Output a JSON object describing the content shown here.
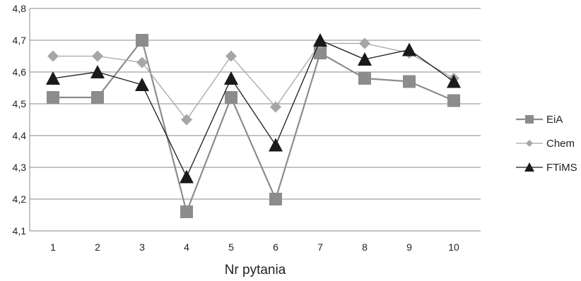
{
  "chart_data": {
    "type": "line",
    "x": [
      1,
      2,
      3,
      4,
      5,
      6,
      7,
      8,
      9,
      10
    ],
    "xlabel": "Nr pytania",
    "ylabel": "",
    "ylim": [
      4.1,
      4.8
    ],
    "yticks": [
      "4,1",
      "4,2",
      "4,3",
      "4,4",
      "4,5",
      "4,6",
      "4,7",
      "4,8"
    ],
    "grid": "horizontal",
    "legend_position": "right",
    "series": [
      {
        "name": "EiA",
        "marker": "square",
        "color": "#8c8c8c",
        "values": [
          4.52,
          4.52,
          4.7,
          4.16,
          4.52,
          4.2,
          4.66,
          4.58,
          4.57,
          4.51
        ]
      },
      {
        "name": "Chem",
        "marker": "diamond",
        "color": "#a6a6a6",
        "values": [
          4.65,
          4.65,
          4.63,
          4.45,
          4.65,
          4.49,
          4.69,
          4.69,
          4.66,
          4.58
        ]
      },
      {
        "name": "FTiMS",
        "marker": "triangle",
        "color": "#1a1a1a",
        "values": [
          4.58,
          4.6,
          4.56,
          4.27,
          4.58,
          4.37,
          4.7,
          4.64,
          4.67,
          4.57
        ]
      }
    ]
  }
}
